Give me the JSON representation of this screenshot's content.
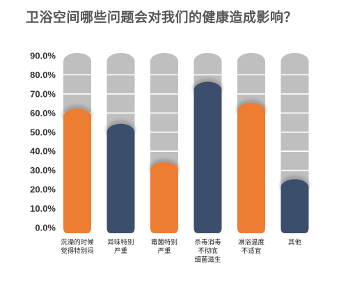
{
  "chart_data": {
    "type": "bar",
    "title": "卫浴空间哪些问题会对我们的健康造成影响？",
    "categories": [
      [
        "洗澡的时候",
        "觉得特别闷"
      ],
      [
        "异味特别",
        "严重"
      ],
      [
        "霉菌特别",
        "严重"
      ],
      [
        "杀毒消毒",
        "不彻底",
        "细菌滋生"
      ],
      [
        "淋浴温度",
        "不适宜"
      ],
      [
        "其他"
      ]
    ],
    "values": [
      62,
      54,
      34,
      76,
      65,
      25
    ],
    "y_ticks": [
      "0.0%",
      "10.0%",
      "20.0%",
      "30.0%",
      "40.0%",
      "50.0%",
      "60.0%",
      "70.0%",
      "80.0%",
      "90.0%"
    ],
    "ylim": [
      0,
      90
    ],
    "xlabel": "",
    "ylabel": "",
    "legend": "none",
    "grid": false,
    "colors": {
      "orange": "#ED7D31",
      "navy": "#3B4E6B",
      "background_bar": "#BFBFBF",
      "segment_line": "#FFFFFF"
    },
    "bar_colors": [
      "orange",
      "navy",
      "orange",
      "navy",
      "orange",
      "navy"
    ]
  }
}
